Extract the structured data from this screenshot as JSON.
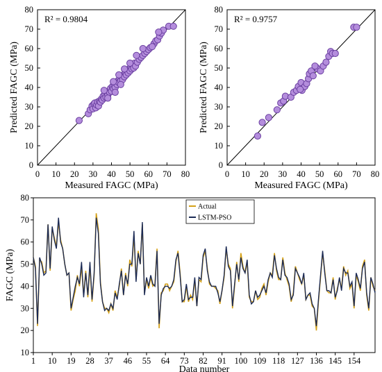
{
  "colors": {
    "scatter_fill": "#b48ddc",
    "scatter_stroke": "#6a3fa0",
    "actual_line": "#d4a017",
    "lstm_line": "#1b2a55",
    "axis": "#000000"
  },
  "chart_data": [
    {
      "type": "scatter",
      "r2_label": "R² = 0.9804",
      "xlabel": "Measured FAGC (MPa)",
      "ylabel": "Predicted FAGC (MPa)",
      "xlim": [
        0,
        80
      ],
      "ylim": [
        0,
        80
      ],
      "xticks": [
        "0",
        "10",
        "20",
        "30",
        "40",
        "50",
        "60",
        "70",
        "80"
      ],
      "yticks": [
        "0",
        "10",
        "20",
        "30",
        "40",
        "50",
        "60",
        "70",
        "80"
      ],
      "reference_line": [
        [
          0,
          0
        ],
        [
          80,
          80
        ]
      ],
      "grid": false,
      "points": [
        [
          22.5,
          23.0
        ],
        [
          27.5,
          26.5
        ],
        [
          28.5,
          28.5
        ],
        [
          29.5,
          30.5
        ],
        [
          30.0,
          29.0
        ],
        [
          30.5,
          31.5
        ],
        [
          31.0,
          32.0
        ],
        [
          31.5,
          29.5
        ],
        [
          32.0,
          31.0
        ],
        [
          32.5,
          32.5
        ],
        [
          33.0,
          30.5
        ],
        [
          33.5,
          33.0
        ],
        [
          34.0,
          32.5
        ],
        [
          34.5,
          34.0
        ],
        [
          35.0,
          33.5
        ],
        [
          35.5,
          35.5
        ],
        [
          36.0,
          34.5
        ],
        [
          36.5,
          36.5
        ],
        [
          37.0,
          35.0
        ],
        [
          37.5,
          37.5
        ],
        [
          38.0,
          36.0
        ],
        [
          38.5,
          38.0
        ],
        [
          39.0,
          37.5
        ],
        [
          39.5,
          39.5
        ],
        [
          40.0,
          38.0
        ],
        [
          40.5,
          40.5
        ],
        [
          41.0,
          39.5
        ],
        [
          41.5,
          41.0
        ],
        [
          42.0,
          40.0
        ],
        [
          42.5,
          42.5
        ],
        [
          43.0,
          41.5
        ],
        [
          43.5,
          43.5
        ],
        [
          44.0,
          42.5
        ],
        [
          44.5,
          44.5
        ],
        [
          45.0,
          43.5
        ],
        [
          45.5,
          45.5
        ],
        [
          46.0,
          44.0
        ],
        [
          46.5,
          46.5
        ],
        [
          47.0,
          45.5
        ],
        [
          47.5,
          47.5
        ],
        [
          48.0,
          46.5
        ],
        [
          48.5,
          48.5
        ],
        [
          49.0,
          47.5
        ],
        [
          49.5,
          49.5
        ],
        [
          50.0,
          48.5
        ],
        [
          50.5,
          50.5
        ],
        [
          51.0,
          49.5
        ],
        [
          51.5,
          51.5
        ],
        [
          52.0,
          50.0
        ],
        [
          52.5,
          52.5
        ],
        [
          53.0,
          51.0
        ],
        [
          54.0,
          53.0
        ],
        [
          55.0,
          54.5
        ],
        [
          56.0,
          55.5
        ],
        [
          57.0,
          56.5
        ],
        [
          58.0,
          57.5
        ],
        [
          59.0,
          58.5
        ],
        [
          60.0,
          59.5
        ],
        [
          61.0,
          60.5
        ],
        [
          63.0,
          62.5
        ],
        [
          64.0,
          64.0
        ],
        [
          65.0,
          64.5
        ],
        [
          66.0,
          66.5
        ],
        [
          67.0,
          68.0
        ],
        [
          68.0,
          69.5
        ],
        [
          71.0,
          71.5
        ],
        [
          73.5,
          71.5
        ],
        [
          36.0,
          38.5
        ],
        [
          38.0,
          34.5
        ],
        [
          41.0,
          43.0
        ],
        [
          44.0,
          46.5
        ],
        [
          47.0,
          49.5
        ],
        [
          50.0,
          52.5
        ],
        [
          45.0,
          41.5
        ],
        [
          42.0,
          37.5
        ],
        [
          53.5,
          56.5
        ],
        [
          57.0,
          60.0
        ],
        [
          62.0,
          61.0
        ],
        [
          65.5,
          68.5
        ]
      ]
    },
    {
      "type": "scatter",
      "r2_label": "R² = 0.9757",
      "xlabel": "Measured FAGC (MPa)",
      "ylabel": "Predicted FAGC (MPa)",
      "xlim": [
        0,
        80
      ],
      "ylim": [
        0,
        80
      ],
      "xticks": [
        "0",
        "10",
        "20",
        "30",
        "40",
        "50",
        "60",
        "70",
        "80"
      ],
      "yticks": [
        "0",
        "10",
        "20",
        "30",
        "40",
        "50",
        "60",
        "70",
        "80"
      ],
      "reference_line": [
        [
          0,
          0
        ],
        [
          80,
          80
        ]
      ],
      "grid": false,
      "points": [
        [
          16.5,
          15.0
        ],
        [
          19.0,
          22.0
        ],
        [
          22.5,
          24.5
        ],
        [
          27.0,
          28.5
        ],
        [
          29.0,
          32.0
        ],
        [
          30.5,
          33.0
        ],
        [
          31.5,
          35.5
        ],
        [
          34.5,
          35.0
        ],
        [
          36.0,
          37.5
        ],
        [
          37.5,
          38.5
        ],
        [
          38.5,
          40.5
        ],
        [
          40.0,
          42.5
        ],
        [
          40.5,
          38.5
        ],
        [
          42.0,
          40.5
        ],
        [
          43.0,
          42.0
        ],
        [
          44.0,
          44.5
        ],
        [
          44.5,
          47.0
        ],
        [
          45.5,
          48.5
        ],
        [
          46.5,
          46.0
        ],
        [
          48.0,
          50.5
        ],
        [
          49.0,
          49.5
        ],
        [
          50.5,
          48.5
        ],
        [
          52.0,
          51.0
        ],
        [
          53.5,
          53.0
        ],
        [
          55.0,
          56.0
        ],
        [
          56.0,
          58.5
        ],
        [
          57.0,
          57.5
        ],
        [
          58.5,
          57.5
        ],
        [
          68.5,
          71.0
        ],
        [
          70.0,
          71.0
        ],
        [
          39.5,
          39.0
        ],
        [
          47.5,
          51.0
        ]
      ]
    },
    {
      "type": "line",
      "xlabel": "Data number",
      "ylabel": "FAGC (MPa)",
      "xlim": [
        1,
        162
      ],
      "ylim": [
        10,
        80
      ],
      "xticks": [
        "1",
        "10",
        "19",
        "28",
        "37",
        "46",
        "55",
        "64",
        "73",
        "82",
        "91",
        "100",
        "109",
        "118",
        "127",
        "136",
        "145",
        "154"
      ],
      "yticks": [
        "10",
        "20",
        "30",
        "40",
        "50",
        "60",
        "70",
        "80"
      ],
      "legend_position": "top-center",
      "series": [
        {
          "name": "Actual",
          "values": [
            53,
            49,
            22,
            52,
            51,
            46,
            47,
            68,
            47,
            66,
            62,
            58,
            69,
            61,
            57,
            50,
            45,
            46,
            29,
            34,
            38,
            45,
            40,
            49,
            36,
            47,
            35,
            49,
            33,
            45,
            73,
            66,
            42,
            33,
            30,
            30,
            28,
            32,
            29,
            38,
            35,
            40,
            48,
            36,
            46,
            40,
            52,
            49,
            63,
            43,
            56,
            50,
            68,
            37,
            43,
            39,
            44,
            40,
            41,
            57,
            21,
            37,
            38,
            41,
            41,
            38,
            40,
            42,
            51,
            56,
            46,
            33,
            33,
            40,
            33,
            36,
            34,
            43,
            31,
            43,
            42,
            53,
            56,
            48,
            41,
            40,
            40,
            39,
            38,
            32,
            38,
            44,
            57,
            50,
            48,
            30,
            40,
            51,
            42,
            55,
            49,
            46,
            51,
            35,
            33,
            33,
            38,
            34,
            35,
            39,
            41,
            36,
            42,
            46,
            45,
            55,
            47,
            43,
            43,
            53,
            46,
            43,
            40,
            33,
            37,
            49,
            46,
            43,
            41,
            45,
            34,
            36,
            36,
            31,
            30,
            20,
            33,
            44,
            55,
            47,
            38,
            37,
            37,
            44,
            34,
            39,
            43,
            39,
            49,
            45,
            47,
            39,
            41,
            30,
            45,
            42,
            38,
            49,
            52,
            36,
            29,
            44,
            40,
            38
          ]
        },
        {
          "name": "LSTM-PSO",
          "values": [
            53,
            48,
            23,
            53,
            50,
            45,
            46,
            68,
            48,
            67,
            61,
            57,
            71,
            60,
            57,
            50,
            45,
            46,
            30,
            35,
            40,
            44,
            41,
            51,
            35,
            46,
            36,
            51,
            34,
            46,
            71,
            64,
            41,
            33,
            29,
            30,
            29,
            32,
            30,
            37,
            34,
            41,
            47,
            36,
            45,
            41,
            50,
            50,
            65,
            42,
            55,
            50,
            69,
            36,
            44,
            40,
            45,
            41,
            40,
            56,
            23,
            36,
            39,
            40,
            40,
            39,
            40,
            43,
            52,
            55,
            45,
            33,
            34,
            41,
            34,
            35,
            35,
            44,
            31,
            44,
            43,
            54,
            57,
            47,
            42,
            40,
            40,
            40,
            37,
            33,
            38,
            45,
            58,
            49,
            47,
            31,
            41,
            50,
            43,
            53,
            48,
            46,
            52,
            36,
            32,
            33,
            38,
            35,
            36,
            38,
            40,
            37,
            43,
            46,
            44,
            54,
            48,
            44,
            43,
            52,
            45,
            44,
            41,
            34,
            36,
            48,
            46,
            44,
            41,
            46,
            34,
            36,
            37,
            32,
            30,
            22,
            34,
            45,
            56,
            46,
            38,
            38,
            37,
            43,
            35,
            38,
            44,
            38,
            48,
            46,
            46,
            40,
            42,
            31,
            46,
            43,
            39,
            48,
            51,
            37,
            30,
            44,
            41,
            37
          ]
        }
      ]
    }
  ]
}
